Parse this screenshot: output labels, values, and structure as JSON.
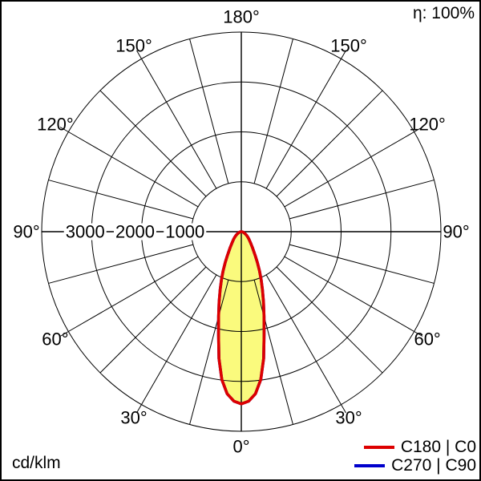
{
  "header": {
    "efficiency": "η: 100%"
  },
  "footer": {
    "unit": "cd/klm"
  },
  "legend": {
    "items": [
      {
        "label": "C180 | C0",
        "color": "#dd0000"
      },
      {
        "label": "C270 | C90",
        "color": "#0000cc"
      }
    ]
  },
  "chart_data": {
    "type": "polar",
    "subtype": "luminous-intensity-distribution",
    "unit": "cd/klm",
    "efficiency_percent": 100,
    "zero_angle_position": "bottom",
    "grid": {
      "angle_step_deg": 15,
      "labeled_angles_deg": [
        0,
        30,
        60,
        90,
        120,
        150,
        180
      ],
      "outer_tick_angles_deg": [
        30,
        60,
        120,
        150
      ],
      "rings": [
        1000,
        2000,
        3000,
        4000
      ],
      "ring_labels": [
        "1000",
        "2000",
        "3000"
      ],
      "max_value": 4000,
      "degree_suffix": "°"
    },
    "series": [
      {
        "name": "C180 | C0",
        "color": "#dd0000",
        "fill": "#fafa7d",
        "symmetric": true,
        "points": [
          [
            0,
            3450
          ],
          [
            2.5,
            3400
          ],
          [
            5,
            3260
          ],
          [
            7.5,
            2990
          ],
          [
            10,
            2580
          ],
          [
            12.5,
            2110
          ],
          [
            15,
            1760
          ],
          [
            17.5,
            1480
          ],
          [
            20,
            1240
          ],
          [
            22.5,
            1040
          ],
          [
            25,
            860
          ],
          [
            27.5,
            700
          ],
          [
            30,
            565
          ],
          [
            35,
            390
          ],
          [
            40,
            285
          ],
          [
            45,
            222
          ],
          [
            50,
            172
          ],
          [
            55,
            132
          ],
          [
            60,
            98
          ],
          [
            65,
            72
          ],
          [
            70,
            51
          ],
          [
            75,
            35
          ],
          [
            80,
            22
          ],
          [
            85,
            12
          ],
          [
            90,
            5
          ]
        ]
      },
      {
        "name": "C270 | C90",
        "color": "#0000cc",
        "fill": null,
        "symmetric": true,
        "points": [
          [
            0,
            3450
          ],
          [
            2.5,
            3400
          ],
          [
            5,
            3260
          ],
          [
            7.5,
            2990
          ],
          [
            10,
            2580
          ],
          [
            12.5,
            2110
          ],
          [
            15,
            1760
          ],
          [
            17.5,
            1480
          ],
          [
            20,
            1240
          ],
          [
            22.5,
            1040
          ],
          [
            25,
            860
          ],
          [
            27.5,
            700
          ],
          [
            30,
            565
          ],
          [
            35,
            390
          ],
          [
            40,
            285
          ],
          [
            45,
            222
          ],
          [
            50,
            172
          ],
          [
            55,
            132
          ],
          [
            60,
            98
          ],
          [
            65,
            72
          ],
          [
            70,
            51
          ],
          [
            75,
            35
          ],
          [
            80,
            22
          ],
          [
            85,
            12
          ],
          [
            90,
            5
          ]
        ]
      }
    ]
  }
}
